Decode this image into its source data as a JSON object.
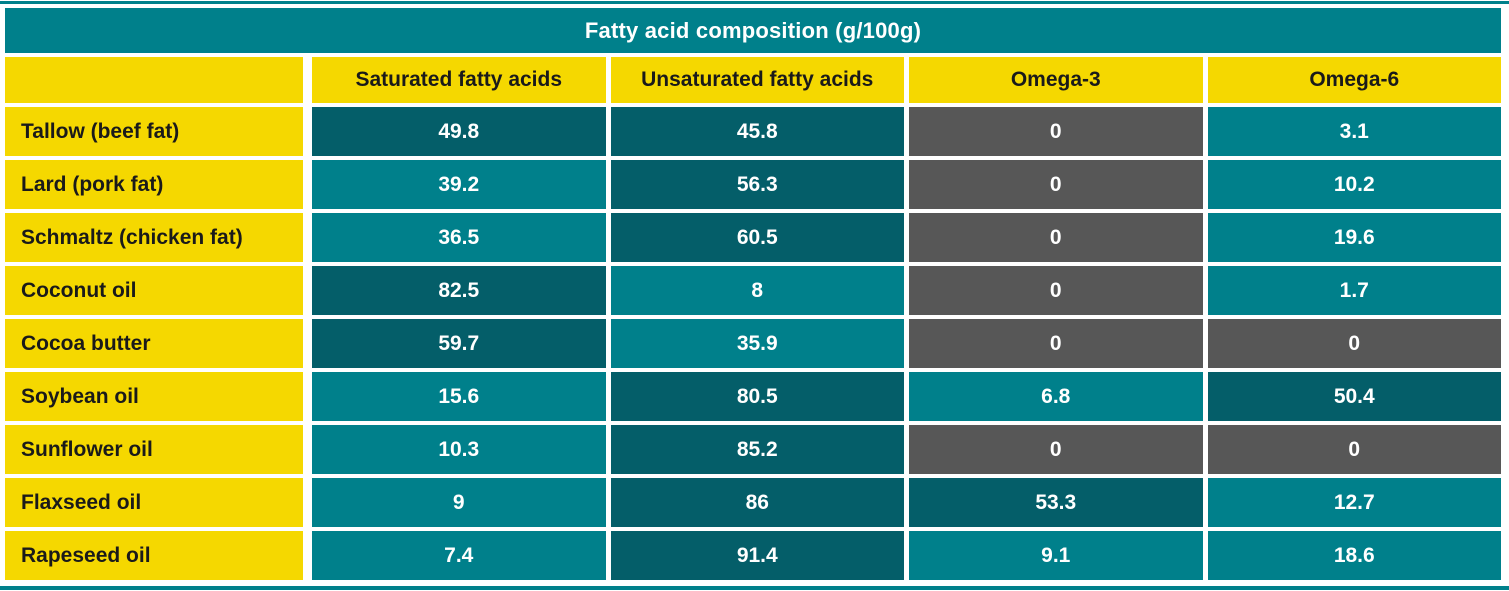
{
  "title": "Fatty acid composition (g/100g)",
  "chart_data": {
    "type": "table",
    "title": "Fatty acid composition (g/100g)",
    "columns": [
      "Saturated fatty acids",
      "Unsaturated fatty acids",
      "Omega-3",
      "Omega-6"
    ],
    "rows": [
      {
        "label": "Tallow (beef fat)",
        "values": [
          49.8,
          45.8,
          0,
          3.1
        ]
      },
      {
        "label": "Lard (pork fat)",
        "values": [
          39.2,
          56.3,
          0,
          10.2
        ]
      },
      {
        "label": "Schmaltz (chicken fat)",
        "values": [
          36.5,
          60.5,
          0,
          19.6
        ]
      },
      {
        "label": "Coconut oil",
        "values": [
          82.5,
          8,
          0,
          1.7
        ]
      },
      {
        "label": "Cocoa butter",
        "values": [
          59.7,
          35.9,
          0,
          0
        ]
      },
      {
        "label": "Soybean oil",
        "values": [
          15.6,
          80.5,
          6.8,
          50.4
        ]
      },
      {
        "label": "Sunflower oil",
        "values": [
          10.3,
          85.2,
          0,
          0
        ]
      },
      {
        "label": "Flaxseed oil",
        "values": [
          9,
          86,
          53.3,
          12.7
        ]
      },
      {
        "label": "Rapeseed oil",
        "values": [
          7.4,
          91.4,
          9.1,
          18.6
        ]
      }
    ],
    "units": "g/100g",
    "legend": "cell shading: gray = 0, teal = low, dark teal = high (>= 45)"
  },
  "colors": {
    "teal": "#00808b",
    "dark_teal": "#045e69",
    "zero_gray": "#575757",
    "yellow": "#f5d800",
    "value_text": "#ffffff",
    "label_text": "#1a1a1a",
    "dark_threshold": 45
  }
}
